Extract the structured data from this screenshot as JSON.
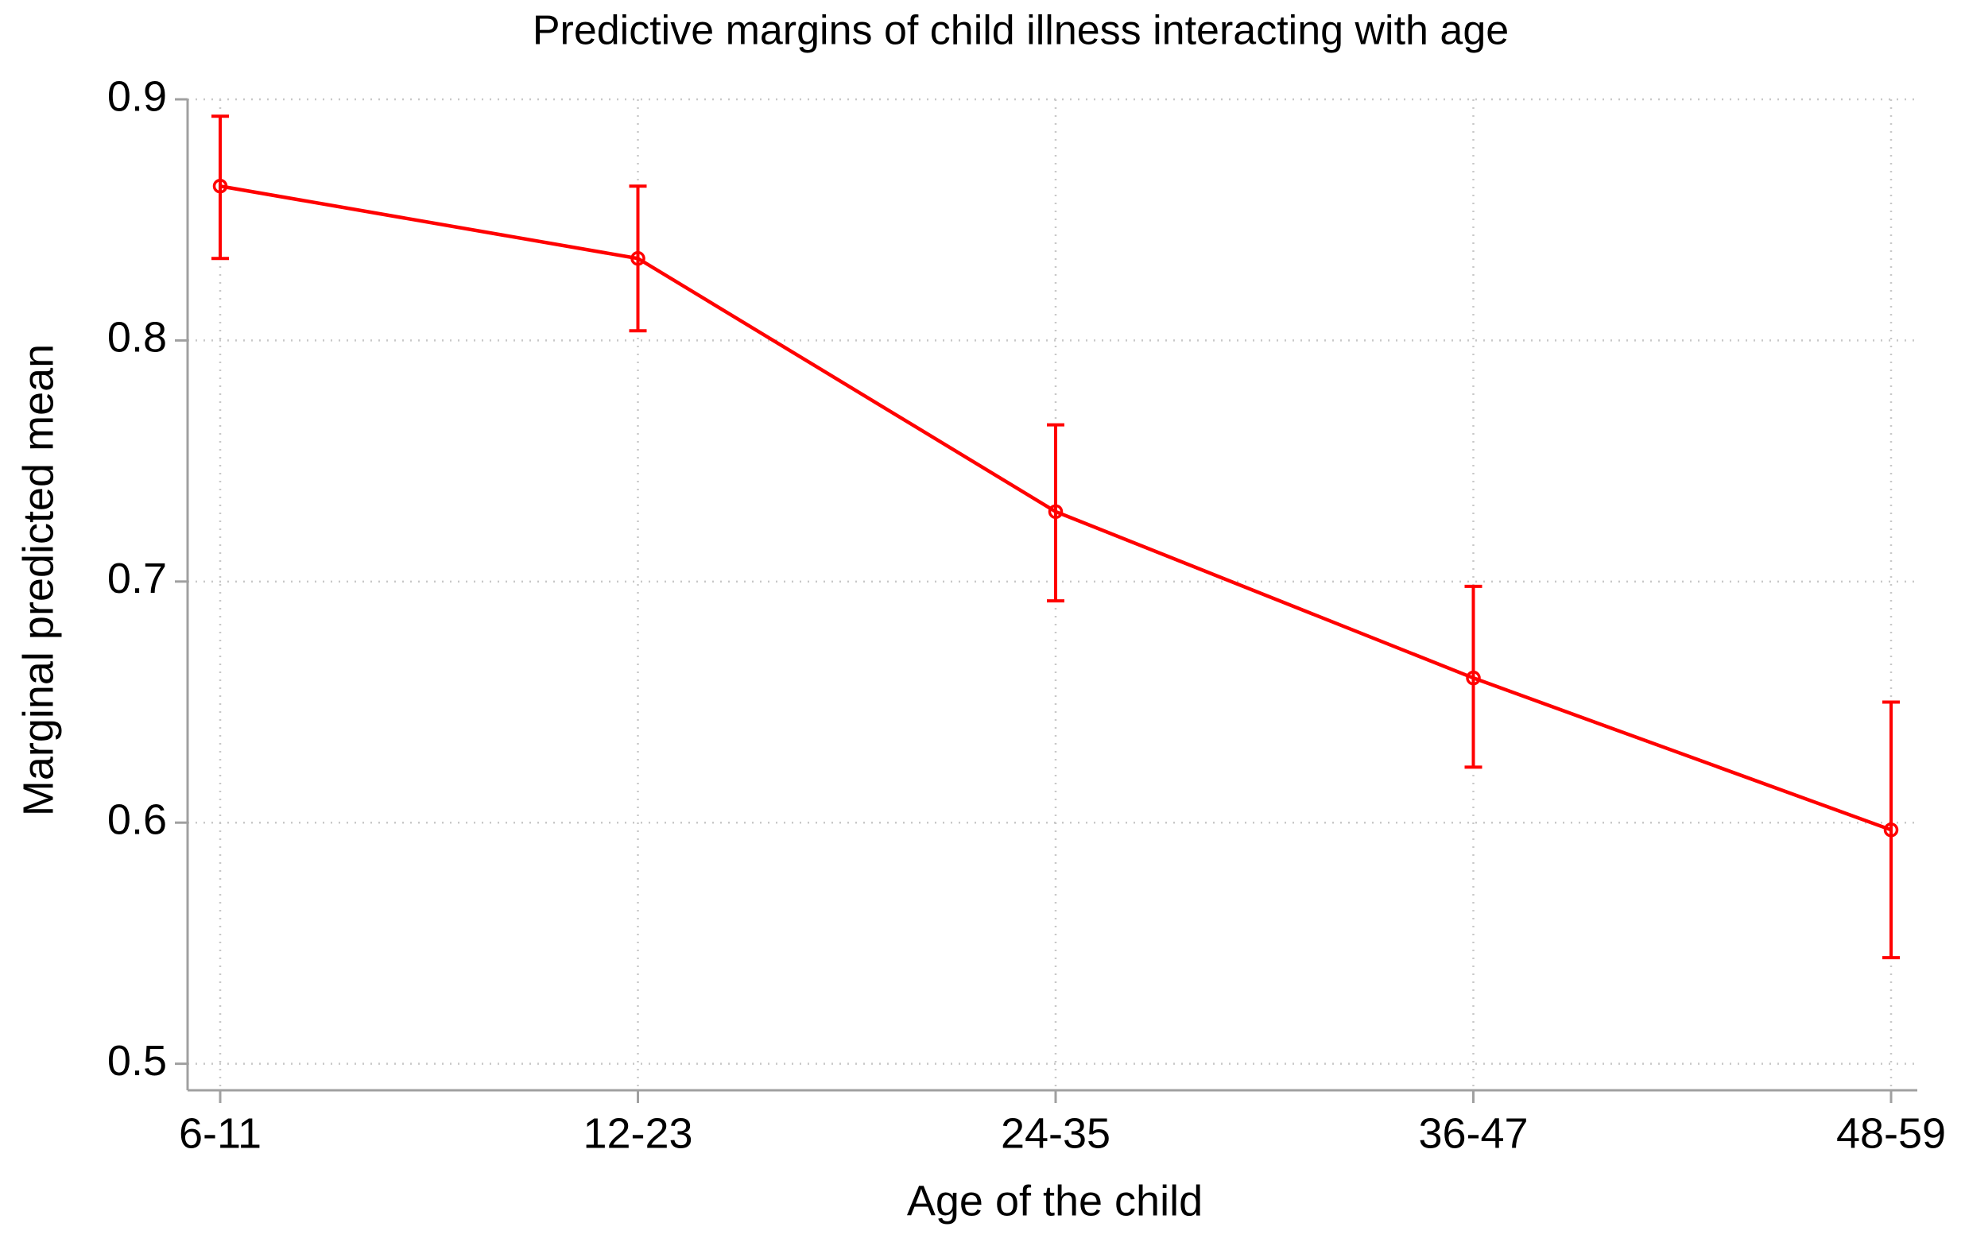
{
  "chart_data": {
    "type": "line",
    "title": "Predictive margins of child illness interacting with age",
    "x_label": "Age of the child",
    "y_label": "Marginal predicted mean",
    "categories": [
      "6-11",
      "12-23",
      "24-35",
      "36-47",
      "48-59"
    ],
    "series": [
      {
        "color": "#ff0000",
        "values": [
          0.864,
          0.834,
          0.729,
          0.66,
          0.597
        ],
        "ci_lower": [
          0.834,
          0.804,
          0.692,
          0.623,
          0.544
        ],
        "ci_upper": [
          0.893,
          0.864,
          0.765,
          0.698,
          0.65
        ]
      }
    ],
    "ylim": [
      0.489,
      0.9
    ],
    "yticks": [
      0.5,
      0.6,
      0.7,
      0.8,
      0.9
    ],
    "grid": true
  }
}
